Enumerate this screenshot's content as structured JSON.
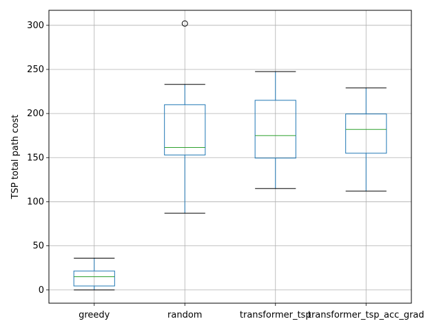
{
  "chart_data": {
    "type": "box",
    "title": "",
    "xlabel": "",
    "ylabel": "TSP total path cost",
    "ylim": [
      -15,
      317
    ],
    "yticks": [
      0,
      50,
      100,
      150,
      200,
      250,
      300
    ],
    "grid": true,
    "box_color": "#1f77b4",
    "median_color": "#2ca02c",
    "grid_color": "#b0b0b0",
    "categories": [
      "greedy",
      "random",
      "transformer_tsp",
      "transformer_tsp_acc_grad"
    ],
    "boxes": [
      {
        "label": "greedy",
        "whisker_low": 0,
        "q1": 4.5,
        "median": 15,
        "q3": 21.5,
        "whisker_high": 36,
        "outliers": []
      },
      {
        "label": "random",
        "whisker_low": 87,
        "q1": 153,
        "median": 161.5,
        "q3": 210,
        "whisker_high": 233,
        "outliers": [
          302
        ]
      },
      {
        "label": "transformer_tsp",
        "whisker_low": 115,
        "q1": 149.5,
        "median": 175,
        "q3": 215,
        "whisker_high": 247.5,
        "outliers": []
      },
      {
        "label": "transformer_tsp_acc_grad",
        "whisker_low": 112,
        "q1": 155,
        "median": 182,
        "q3": 199.5,
        "whisker_high": 229,
        "outliers": []
      }
    ]
  }
}
